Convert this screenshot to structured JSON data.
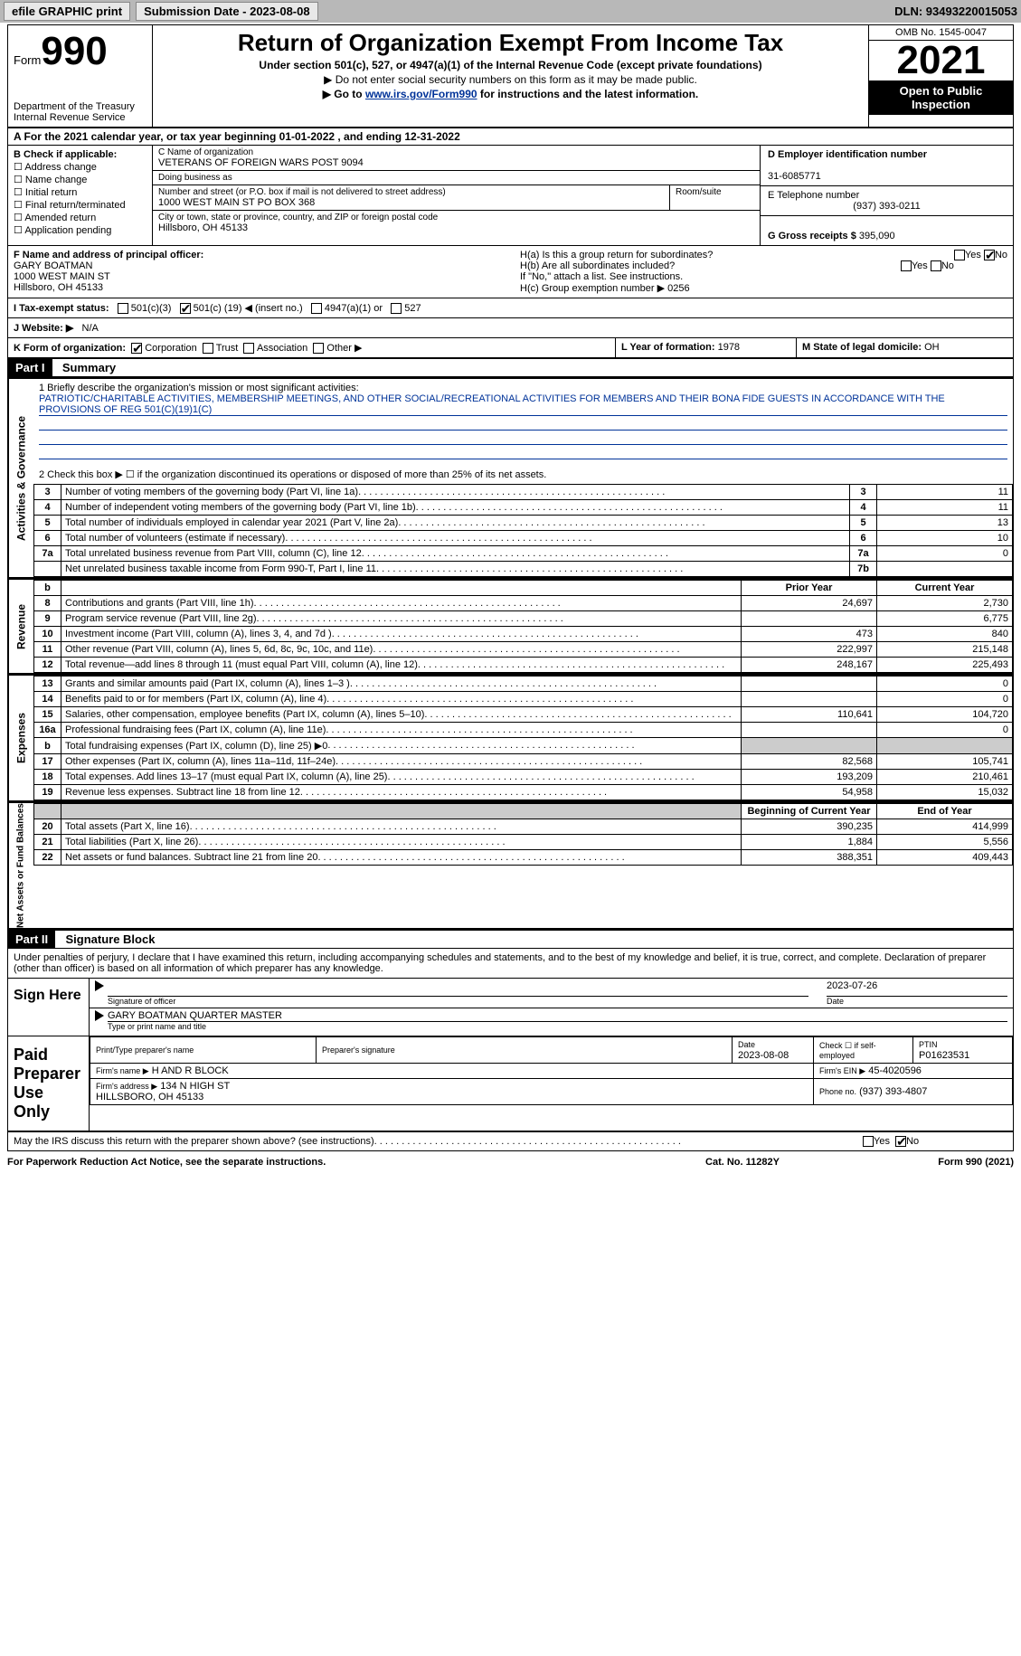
{
  "topbar": {
    "efile": "efile GRAPHIC print",
    "submission": "Submission Date - 2023-08-08",
    "dln": "DLN: 93493220015053"
  },
  "header": {
    "form_prefix": "Form",
    "form_num": "990",
    "dept": "Department of the Treasury\nInternal Revenue Service",
    "title": "Return of Organization Exempt From Income Tax",
    "sub1": "Under section 501(c), 527, or 4947(a)(1) of the Internal Revenue Code (except private foundations)",
    "sub2": "▶ Do not enter social security numbers on this form as it may be made public.",
    "sub3_pre": "▶ Go to ",
    "sub3_link": "www.irs.gov/Form990",
    "sub3_post": " for instructions and the latest information.",
    "omb": "OMB No. 1545-0047",
    "year": "2021",
    "open": "Open to Public Inspection"
  },
  "rowA": "A  For the 2021 calendar year, or tax year beginning 01-01-2022    , and ending 12-31-2022",
  "colB": {
    "lbl": "B Check if applicable:",
    "items": [
      "Address change",
      "Name change",
      "Initial return",
      "Final return/terminated",
      "Amended return",
      "Application pending"
    ]
  },
  "colC": {
    "name_lbl": "C Name of organization",
    "name": "VETERANS OF FOREIGN WARS POST 9094",
    "dba_lbl": "Doing business as",
    "dba": "",
    "street_lbl": "Number and street (or P.O. box if mail is not delivered to street address)",
    "street": "1000 WEST MAIN ST PO BOX 368",
    "room_lbl": "Room/suite",
    "city_lbl": "City or town, state or province, country, and ZIP or foreign postal code",
    "city": "Hillsboro, OH  45133"
  },
  "colD": {
    "ein_lbl": "D Employer identification number",
    "ein": "31-6085771",
    "tel_lbl": "E Telephone number",
    "tel": "(937) 393-0211",
    "gross_lbl": "G Gross receipts $",
    "gross": "395,090"
  },
  "rowF": {
    "f_lbl": "F Name and address of principal officer:",
    "f_name": "GARY BOATMAN",
    "f_street": "1000 WEST MAIN ST",
    "f_city": "Hillsboro, OH  45133",
    "ha": "H(a)  Is this a group return for subordinates?",
    "hb": "H(b)  Are all subordinates included?",
    "hb_note": "If \"No,\" attach a list. See instructions.",
    "hc": "H(c)  Group exemption number ▶",
    "hc_val": "0256"
  },
  "rowI": {
    "lbl": "I  Tax-exempt status:",
    "c3": "501(c)(3)",
    "c_pre": "501(c) (",
    "c_num": "19",
    "c_post": ") ◀ (insert no.)",
    "a1": "4947(a)(1) or",
    "527": "527"
  },
  "rowJ": {
    "lbl": "J  Website: ▶",
    "val": "N/A"
  },
  "rowK": {
    "k_lbl": "K Form of organization:",
    "corp": "Corporation",
    "trust": "Trust",
    "assoc": "Association",
    "other": "Other ▶",
    "l_lbl": "L Year of formation:",
    "l_val": "1978",
    "m_lbl": "M State of legal domicile:",
    "m_val": "OH"
  },
  "part1": {
    "hdr": "Part I",
    "title": "Summary",
    "line1_lbl": "1  Briefly describe the organization's mission or most significant activities:",
    "line1_val": "PATRIOTIC/CHARITABLE ACTIVITIES, MEMBERSHIP MEETINGS, AND OTHER SOCIAL/RECREATIONAL ACTIVITIES FOR MEMBERS AND THEIR BONA FIDE GUESTS IN ACCORDANCE WITH THE PROVISIONS OF REG 501(C)(19)1(C)",
    "line2": "2  Check this box ▶ ☐  if the organization discontinued its operations or disposed of more than 25% of its net assets.",
    "rows": [
      {
        "n": "3",
        "t": "Number of voting members of the governing body (Part VI, line 1a)",
        "box": "3",
        "v": "11"
      },
      {
        "n": "4",
        "t": "Number of independent voting members of the governing body (Part VI, line 1b)",
        "box": "4",
        "v": "11"
      },
      {
        "n": "5",
        "t": "Total number of individuals employed in calendar year 2021 (Part V, line 2a)",
        "box": "5",
        "v": "13"
      },
      {
        "n": "6",
        "t": "Total number of volunteers (estimate if necessary)",
        "box": "6",
        "v": "10"
      },
      {
        "n": "7a",
        "t": "Total unrelated business revenue from Part VIII, column (C), line 12",
        "box": "7a",
        "v": "0"
      },
      {
        "n": "",
        "t": "Net unrelated business taxable income from Form 990-T, Part I, line 11",
        "box": "7b",
        "v": ""
      }
    ],
    "side_ag": "Activities & Governance"
  },
  "revenue": {
    "side": "Revenue",
    "hdr_b": "b",
    "hdr_py": "Prior Year",
    "hdr_cy": "Current Year",
    "rows": [
      {
        "n": "8",
        "t": "Contributions and grants (Part VIII, line 1h)",
        "py": "24,697",
        "cy": "2,730"
      },
      {
        "n": "9",
        "t": "Program service revenue (Part VIII, line 2g)",
        "py": "",
        "cy": "6,775"
      },
      {
        "n": "10",
        "t": "Investment income (Part VIII, column (A), lines 3, 4, and 7d )",
        "py": "473",
        "cy": "840"
      },
      {
        "n": "11",
        "t": "Other revenue (Part VIII, column (A), lines 5, 6d, 8c, 9c, 10c, and 11e)",
        "py": "222,997",
        "cy": "215,148"
      },
      {
        "n": "12",
        "t": "Total revenue—add lines 8 through 11 (must equal Part VIII, column (A), line 12)",
        "py": "248,167",
        "cy": "225,493"
      }
    ]
  },
  "expenses": {
    "side": "Expenses",
    "rows": [
      {
        "n": "13",
        "t": "Grants and similar amounts paid (Part IX, column (A), lines 1–3 )",
        "py": "",
        "cy": "0"
      },
      {
        "n": "14",
        "t": "Benefits paid to or for members (Part IX, column (A), line 4)",
        "py": "",
        "cy": "0"
      },
      {
        "n": "15",
        "t": "Salaries, other compensation, employee benefits (Part IX, column (A), lines 5–10)",
        "py": "110,641",
        "cy": "104,720"
      },
      {
        "n": "16a",
        "t": "Professional fundraising fees (Part IX, column (A), line 11e)",
        "py": "",
        "cy": "0"
      },
      {
        "n": "b",
        "t": "Total fundraising expenses (Part IX, column (D), line 25) ▶0",
        "py": "SHADE",
        "cy": "SHADE"
      },
      {
        "n": "17",
        "t": "Other expenses (Part IX, column (A), lines 11a–11d, 11f–24e)",
        "py": "82,568",
        "cy": "105,741"
      },
      {
        "n": "18",
        "t": "Total expenses. Add lines 13–17 (must equal Part IX, column (A), line 25)",
        "py": "193,209",
        "cy": "210,461"
      },
      {
        "n": "19",
        "t": "Revenue less expenses. Subtract line 18 from line 12",
        "py": "54,958",
        "cy": "15,032"
      }
    ]
  },
  "netassets": {
    "side": "Net Assets or\nFund Balances",
    "hdr_b": "Beginning of Current Year",
    "hdr_e": "End of Year",
    "rows": [
      {
        "n": "20",
        "t": "Total assets (Part X, line 16)",
        "py": "390,235",
        "cy": "414,999"
      },
      {
        "n": "21",
        "t": "Total liabilities (Part X, line 26)",
        "py": "1,884",
        "cy": "5,556"
      },
      {
        "n": "22",
        "t": "Net assets or fund balances. Subtract line 21 from line 20",
        "py": "388,351",
        "cy": "409,443"
      }
    ]
  },
  "part2": {
    "hdr": "Part II",
    "title": "Signature Block",
    "decl": "Under penalties of perjury, I declare that I have examined this return, including accompanying schedules and statements, and to the best of my knowledge and belief, it is true, correct, and complete. Declaration of preparer (other than officer) is based on all information of which preparer has any knowledge.",
    "sign_here": "Sign Here",
    "sig_officer": "Signature of officer",
    "sig_date": "2023-07-26",
    "sig_name": "GARY BOATMAN  QUARTER MASTER",
    "sig_name_lbl": "Type or print name and title",
    "paid": "Paid Preparer Use Only",
    "prep_name_lbl": "Print/Type preparer's name",
    "prep_sig_lbl": "Preparer's signature",
    "prep_date_lbl": "Date",
    "prep_date": "2023-08-08",
    "prep_check": "Check ☐ if self-employed",
    "ptin_lbl": "PTIN",
    "ptin": "P01623531",
    "firm_name_lbl": "Firm's name      ▶",
    "firm_name": "H AND R BLOCK",
    "firm_ein_lbl": "Firm's EIN ▶",
    "firm_ein": "45-4020596",
    "firm_addr_lbl": "Firm's address ▶",
    "firm_addr": "134 N HIGH ST\nHILLSBORO, OH  45133",
    "firm_phone_lbl": "Phone no.",
    "firm_phone": "(937) 393-4807",
    "may": "May the IRS discuss this return with the preparer shown above? (see instructions)",
    "yes": "Yes",
    "no": "No"
  },
  "footer": {
    "f1": "For Paperwork Reduction Act Notice, see the separate instructions.",
    "f2": "Cat. No. 11282Y",
    "f3": "Form 990 (2021)"
  },
  "colors": {
    "link": "#003399",
    "topbar_bg": "#b8b8b8",
    "btn_bg": "#e8e8e8",
    "shade": "#cccccc"
  }
}
